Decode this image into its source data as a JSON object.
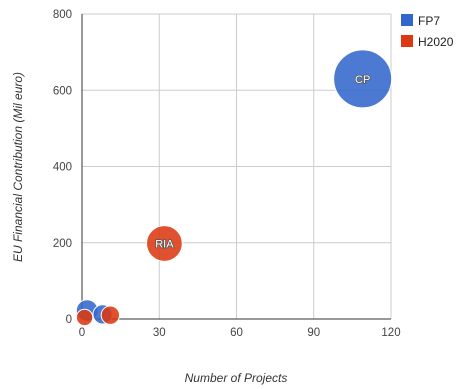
{
  "chart_data": {
    "type": "scatter",
    "xlabel": "Number of Projects",
    "ylabel": "EU Financial Contribution (Mil euro)",
    "xlim": [
      0,
      120
    ],
    "ylim": [
      0,
      800
    ],
    "x_ticks": [
      0,
      30,
      60,
      90,
      120
    ],
    "y_ticks": [
      0,
      200,
      400,
      600,
      800
    ],
    "grid": true,
    "legend_position": "top-right",
    "series": [
      {
        "name": "FP7",
        "color": "#3366cc",
        "points": [
          {
            "x": 109,
            "y": 630,
            "size": 100,
            "label": "CP"
          },
          {
            "x": 2,
            "y": 22,
            "size": 14,
            "label": ""
          },
          {
            "x": 8,
            "y": 12,
            "size": 11,
            "label": ""
          }
        ]
      },
      {
        "name": "H2020",
        "color": "#dc3912",
        "points": [
          {
            "x": 32,
            "y": 198,
            "size": 38,
            "label": "RIA"
          },
          {
            "x": 1,
            "y": 4,
            "size": 8,
            "label": ""
          },
          {
            "x": 11,
            "y": 10,
            "size": 10,
            "label": ""
          }
        ]
      }
    ]
  }
}
